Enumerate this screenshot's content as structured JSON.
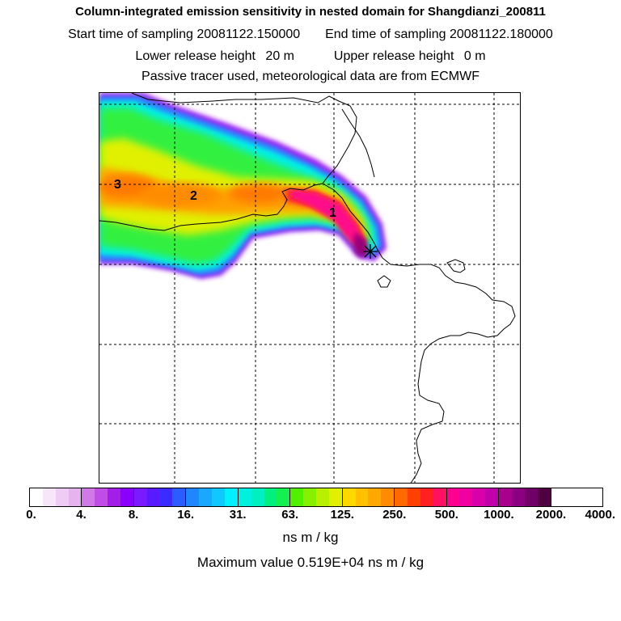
{
  "header": {
    "title": "Column-integrated emission sensitivity in nested domain for Shangdianzi_200811",
    "start_label": "Start time of sampling",
    "start_value": "20081122.150000",
    "end_label": "End time of sampling",
    "end_value": "20081122.180000",
    "lower_label": "Lower release height",
    "lower_value": "20 m",
    "upper_label": "Upper release height",
    "upper_value": "0 m",
    "info": "Passive tracer used, meteorological data are from ECMWF"
  },
  "map": {
    "labels": [
      {
        "text": "3"
      },
      {
        "text": "2"
      },
      {
        "text": "1"
      }
    ],
    "release_marker": "release-point-star-icon"
  },
  "colorbar": {
    "colors": [
      "#ffffff",
      "#f7e6fa",
      "#efccf5",
      "#e6b3ef",
      "#cf7ae6",
      "#c04de5",
      "#a31fe8",
      "#8a00ff",
      "#7a1aff",
      "#5a1aff",
      "#3a2cff",
      "#2b5cff",
      "#1f86ff",
      "#1aa8ff",
      "#10c8ff",
      "#00f0ff",
      "#00f0e0",
      "#00f0c0",
      "#00f080",
      "#14f050",
      "#50f000",
      "#86f000",
      "#b8f000",
      "#e0f000",
      "#ffd800",
      "#ffc000",
      "#ffa800",
      "#ff8c00",
      "#ff6a00",
      "#ff4000",
      "#ff2020",
      "#ff1060",
      "#ff0090",
      "#f000a0",
      "#d800a8",
      "#c000a8",
      "#a8008c",
      "#8a0080",
      "#700068",
      "#500040"
    ],
    "tick_labels": [
      "0.",
      "4.",
      "8.",
      "16.",
      "31.",
      "63.",
      "125.",
      "250.",
      "500.",
      "1000.",
      "2000.",
      "4000."
    ],
    "units": "ns m / kg",
    "max_label": "Maximum value  0.519E+04 ns m / kg"
  }
}
